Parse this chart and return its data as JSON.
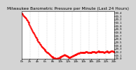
{
  "title": "Milwaukee Barometric Pressure per Minute (Last 24 Hours)",
  "background_color": "#d4d4d4",
  "plot_bg_color": "#ffffff",
  "grid_color": "#aaaaaa",
  "line_color": "#ff0000",
  "border_color": "#000000",
  "ylim": [
    29.0,
    30.45
  ],
  "yticks": [
    29.0,
    29.1,
    29.2,
    29.3,
    29.4,
    29.5,
    29.6,
    29.7,
    29.8,
    29.9,
    30.0,
    30.1,
    30.2,
    30.3,
    30.4
  ],
  "pressure_values": [
    30.38,
    30.36,
    30.33,
    30.3,
    30.27,
    30.25,
    30.23,
    30.2,
    30.17,
    30.14,
    30.1,
    30.06,
    30.02,
    29.98,
    29.94,
    29.9,
    29.86,
    29.82,
    29.78,
    29.74,
    29.7,
    29.66,
    29.63,
    29.6,
    29.57,
    29.54,
    29.51,
    29.48,
    29.45,
    29.42,
    29.39,
    29.36,
    29.34,
    29.32,
    29.3,
    29.28,
    29.26,
    29.24,
    29.22,
    29.2,
    29.18,
    29.16,
    29.14,
    29.12,
    29.1,
    29.08,
    29.07,
    29.06,
    29.05,
    29.04,
    29.03,
    29.02,
    29.01,
    29.0,
    29.0,
    29.01,
    29.02,
    29.03,
    29.04,
    29.05,
    29.06,
    29.07,
    29.08,
    29.09,
    29.1,
    29.11,
    29.12,
    29.11,
    29.1,
    29.09,
    29.08,
    29.07,
    29.06,
    29.05,
    29.05,
    29.05,
    29.06,
    29.07,
    29.08,
    29.09,
    29.1,
    29.11,
    29.12,
    29.13,
    29.13,
    29.14,
    29.15,
    29.16,
    29.17,
    29.17,
    29.18,
    29.19,
    29.2,
    29.2,
    29.2,
    29.19,
    29.19,
    29.19,
    29.2,
    29.21,
    29.21,
    29.21,
    29.2,
    29.2,
    29.19,
    29.18,
    29.18,
    29.19,
    29.2,
    29.21,
    29.22,
    29.22,
    29.22,
    29.21,
    29.2,
    29.2,
    29.21,
    29.22,
    29.23,
    29.23,
    29.22,
    29.21,
    29.21,
    29.22,
    29.22,
    29.22,
    29.21,
    29.2,
    29.2,
    29.21,
    29.22,
    29.23,
    29.23,
    29.22,
    29.21,
    29.2,
    29.21,
    29.22,
    29.23,
    29.24,
    29.24,
    29.23,
    29.22,
    29.22
  ],
  "title_fontsize": 4.2,
  "tick_fontsize": 2.8,
  "marker_size": 0.8,
  "linewidth": 0.4,
  "num_vgrid": 11
}
